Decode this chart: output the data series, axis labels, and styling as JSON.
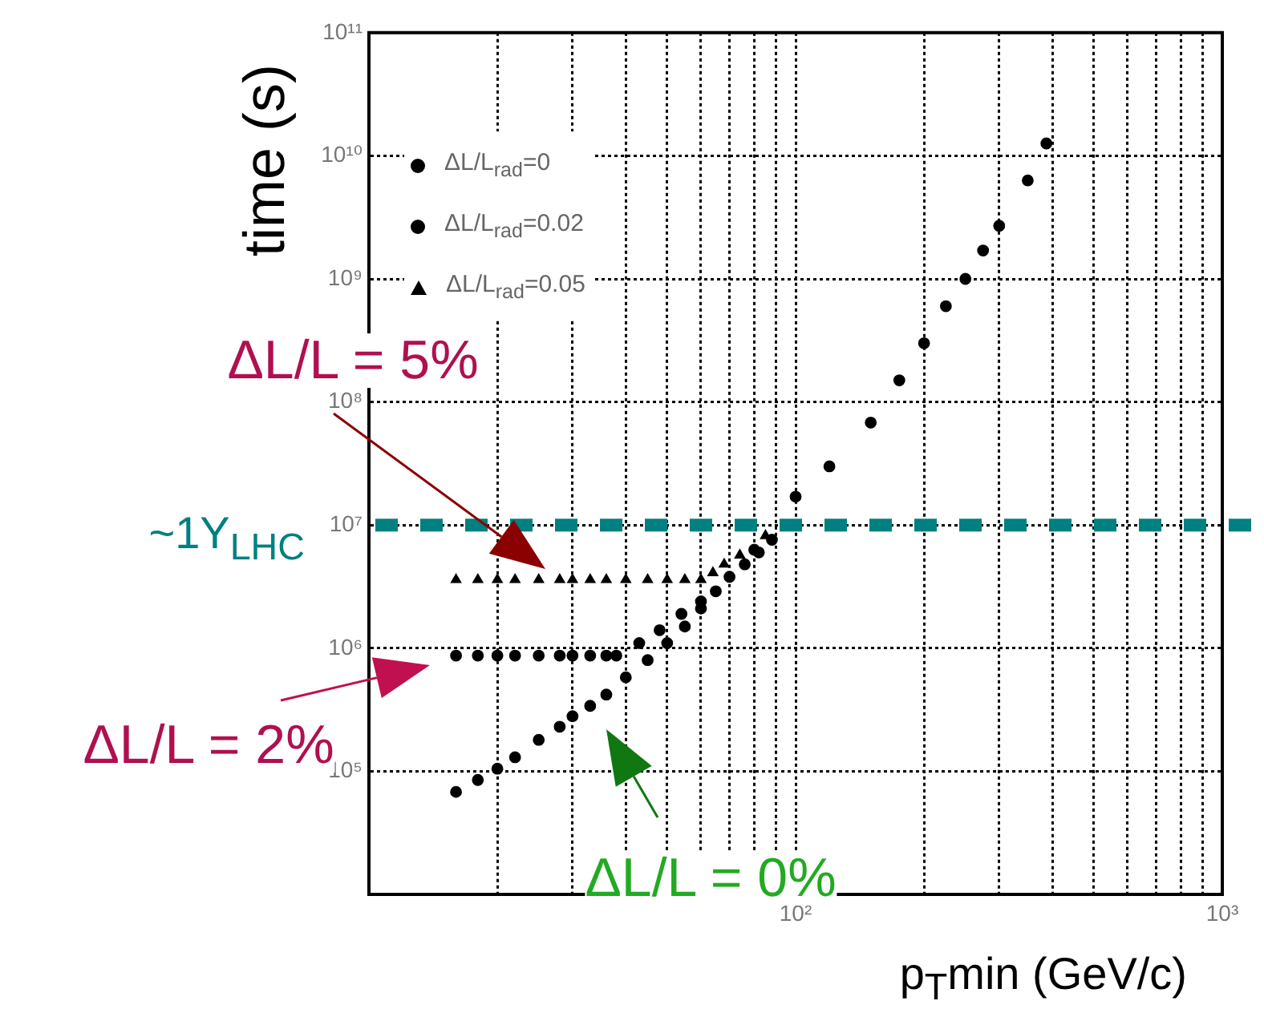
{
  "chart_data": {
    "type": "scatter",
    "xlabel": "p$_{T}$min (GeV/c)",
    "ylabel": "time (s)",
    "log": "xy",
    "xlim": [
      10,
      1000
    ],
    "ylim": [
      10000,
      100000000000
    ],
    "xticks": [
      {
        "value": 20,
        "label": null
      },
      {
        "value": 30,
        "label": null
      },
      {
        "value": 40,
        "label": null
      },
      {
        "value": 50,
        "label": null
      },
      {
        "value": 60,
        "label": null
      },
      {
        "value": 70,
        "label": null
      },
      {
        "value": 80,
        "label": null
      },
      {
        "value": 90,
        "label": null
      },
      {
        "value": 100,
        "label": "10²"
      },
      {
        "value": 200,
        "label": null
      },
      {
        "value": 300,
        "label": null
      },
      {
        "value": 400,
        "label": null
      },
      {
        "value": 500,
        "label": null
      },
      {
        "value": 600,
        "label": null
      },
      {
        "value": 700,
        "label": null
      },
      {
        "value": 800,
        "label": null
      },
      {
        "value": 900,
        "label": null
      },
      {
        "value": 1000,
        "label": "10³"
      }
    ],
    "yticks": [
      {
        "value": 100000,
        "label": "10⁵"
      },
      {
        "value": 1000000,
        "label": "10⁶"
      },
      {
        "value": 10000000,
        "label": "10⁷"
      },
      {
        "value": 100000000,
        "label": "10⁸"
      },
      {
        "value": 1000000000,
        "label": "10⁹"
      },
      {
        "value": 10000000000,
        "label": "10¹⁰"
      },
      {
        "value": 100000000000,
        "label": "10¹¹"
      }
    ],
    "grid": true,
    "legend": "top left",
    "series": [
      {
        "name": "ΔL/L$_{rad}$=0",
        "color": "#000000",
        "marker": "circle",
        "x": [
          16,
          18,
          20,
          22,
          25,
          28,
          30,
          33,
          36,
          40,
          45,
          50,
          55,
          60,
          65,
          70,
          80,
          100,
          120,
          150,
          175,
          200,
          225,
          250,
          275,
          300,
          350,
          387
        ],
        "values": [
          68000,
          85000,
          105000,
          130000,
          180000,
          230000,
          280000,
          340000,
          420000,
          580000,
          800000,
          1100000,
          1500000,
          2100000,
          2900000,
          3800000,
          6300000,
          17000000,
          30000000,
          68000000,
          150000000,
          300000000,
          600000000,
          1000000000,
          1700000000,
          2700000000,
          6300000000,
          12600000000
        ]
      },
      {
        "name": "ΔL/L$_{rad}$=0.02",
        "color": "#000000",
        "marker": "circle",
        "x": [
          16,
          18,
          20,
          22,
          25,
          28,
          30,
          33,
          36,
          38,
          43,
          48,
          54,
          60,
          64,
          70,
          76,
          82,
          88
        ],
        "values": [
          870000,
          870000,
          870000,
          870000,
          870000,
          870000,
          870000,
          870000,
          870000,
          870000,
          1100000,
          1400000,
          1900000,
          2400000,
          null,
          null,
          4800000,
          6000000,
          7600000
        ]
      },
      {
        "name": "ΔL/L$_{rad}$=0.05",
        "color": "#000000",
        "marker": "triangle",
        "x": [
          16,
          18,
          20,
          22,
          25,
          28,
          30,
          33,
          36,
          40,
          45,
          50,
          55,
          60,
          64,
          68,
          74,
          79,
          85
        ],
        "values": [
          3600000,
          3600000,
          3600000,
          3600000,
          3600000,
          3600000,
          3600000,
          3600000,
          3600000,
          3600000,
          3600000,
          3600000,
          3600000,
          3600000,
          4100000,
          4800000,
          5700000,
          null,
          8200000
        ]
      }
    ],
    "ref_lines": [
      {
        "axis": "y",
        "value": 10000000,
        "label": "~1Y$_{LHC}$",
        "color": "#008080",
        "line_style": "dashed"
      }
    ],
    "annotations": [
      "ΔL/L = 5%",
      "ΔL/L = 2%",
      "ΔL/L = 0%"
    ]
  }
}
